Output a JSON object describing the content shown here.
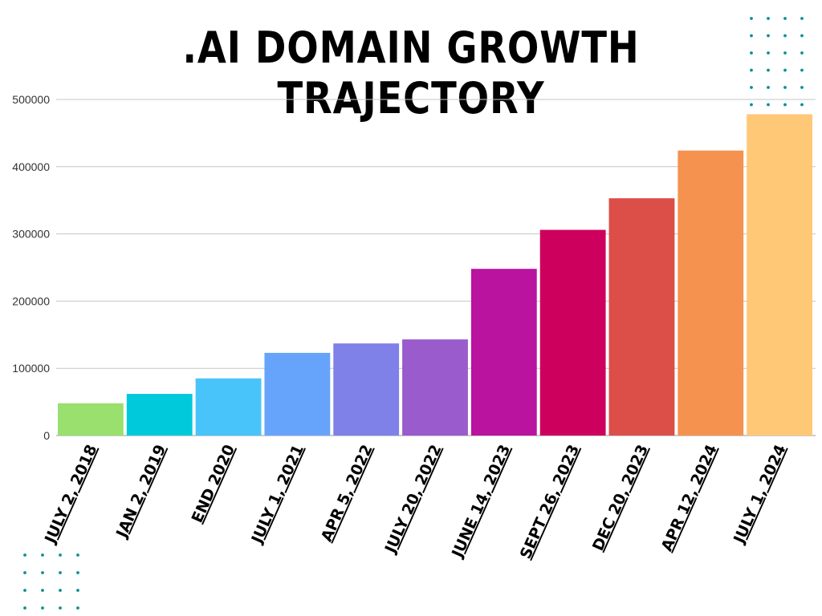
{
  "chart_data": {
    "type": "bar",
    "title": ".AI DOMAIN GROWTH TRAJECTORY",
    "xlabel": "",
    "ylabel": "",
    "categories": [
      "JULY 2, 2018",
      "JAN 2, 2019",
      "END 2020",
      "JULY 1, 2021",
      "APR 5, 2022",
      "JULY 20, 2022",
      "JUNE 14, 2023",
      "SEPT 26, 2023",
      "DEC 20, 2023",
      "APR 12, 2024",
      "JULY 1, 2024"
    ],
    "values": [
      48000,
      62000,
      85000,
      123000,
      137000,
      143000,
      248000,
      306000,
      353000,
      424000,
      478000
    ],
    "colors": [
      "#99e06f",
      "#00c9dc",
      "#48c4fa",
      "#66a4fb",
      "#7f80e8",
      "#9a5bcc",
      "#b913a0",
      "#cd005d",
      "#dc4e48",
      "#f5924f",
      "#ffc877"
    ],
    "ylim": [
      0,
      500000
    ],
    "yticks": [
      0,
      100000,
      200000,
      300000,
      400000,
      500000
    ],
    "grid": true,
    "legend": "none"
  },
  "decor": {
    "dot_color": "#0c8f8f"
  }
}
